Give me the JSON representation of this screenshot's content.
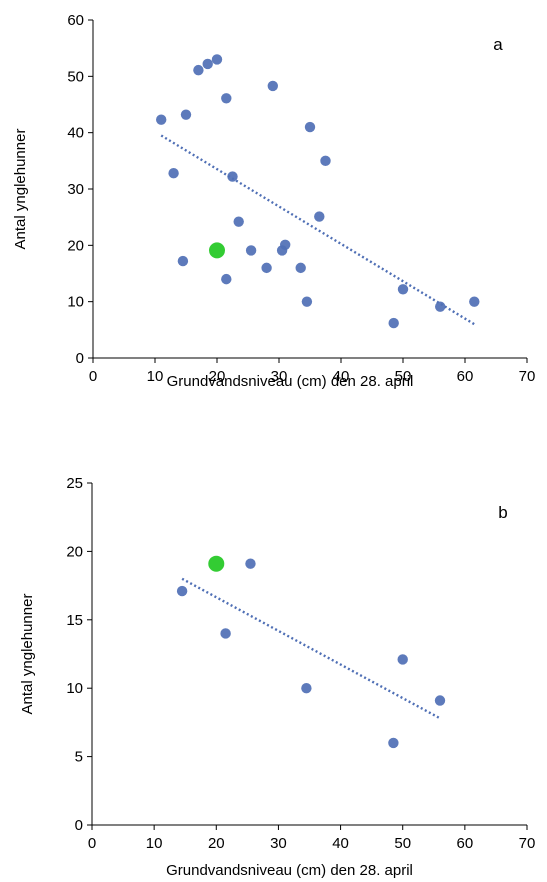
{
  "chart_data": [
    {
      "type": "scatter",
      "panel_label": "a",
      "xlabel": "Grundvandsniveau (cm) den 28. april",
      "ylabel": "Antal ynglehunner",
      "xlim": [
        0,
        70
      ],
      "ylim": [
        0,
        60
      ],
      "xticks": [
        0,
        10,
        20,
        30,
        40,
        50,
        60,
        70
      ],
      "yticks": [
        0,
        10,
        20,
        30,
        40,
        50,
        60
      ],
      "grid": false,
      "series": [
        {
          "color": "#4f6fb5",
          "points": [
            [
              11,
              42.3
            ],
            [
              13,
              32.8
            ],
            [
              14.5,
              17.2
            ],
            [
              15,
              43.2
            ],
            [
              17,
              51.1
            ],
            [
              18.5,
              52.2
            ],
            [
              20,
              53
            ],
            [
              21.5,
              46.1
            ],
            [
              21.5,
              14
            ],
            [
              22.5,
              32.2
            ],
            [
              23.5,
              24.2
            ],
            [
              25.5,
              19.1
            ],
            [
              28,
              16
            ],
            [
              29,
              48.3
            ],
            [
              30.5,
              19.1
            ],
            [
              31,
              20.1
            ],
            [
              33.5,
              16
            ],
            [
              34.5,
              10
            ],
            [
              35,
              41
            ],
            [
              36.5,
              25.1
            ],
            [
              37.5,
              35
            ],
            [
              48.5,
              6.2
            ],
            [
              50,
              12.2
            ],
            [
              56,
              9.1
            ],
            [
              61.5,
              10
            ]
          ]
        },
        {
          "color": "#33cc33",
          "points": [
            [
              20,
              19.1
            ]
          ]
        }
      ],
      "trendline": {
        "color": "#4f6fb5",
        "style": "dotted",
        "x": [
          11,
          61.5
        ],
        "y": [
          39.5,
          6
        ]
      }
    },
    {
      "type": "scatter",
      "panel_label": "b",
      "xlabel": "Grundvandsniveau (cm) den 28. april",
      "ylabel": "Antal ynglehunner",
      "xlim": [
        0,
        70
      ],
      "ylim": [
        0,
        25
      ],
      "xticks": [
        0,
        10,
        20,
        30,
        40,
        50,
        60,
        70
      ],
      "yticks": [
        0,
        5,
        10,
        15,
        20,
        25
      ],
      "grid": false,
      "series": [
        {
          "color": "#4f6fb5",
          "points": [
            [
              14.5,
              17.1
            ],
            [
              21.5,
              14
            ],
            [
              25.5,
              19.1
            ],
            [
              34.5,
              10
            ],
            [
              48.5,
              6
            ],
            [
              50,
              12.1
            ],
            [
              56,
              9.1
            ]
          ]
        },
        {
          "color": "#33cc33",
          "points": [
            [
              20,
              19.1
            ]
          ]
        }
      ],
      "trendline": {
        "color": "#4f6fb5",
        "style": "dotted",
        "x": [
          14.5,
          56
        ],
        "y": [
          18,
          7.8
        ]
      }
    }
  ]
}
